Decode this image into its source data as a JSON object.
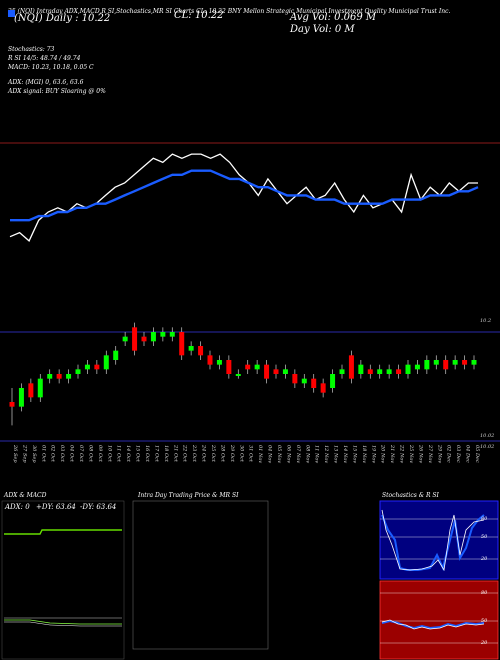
{
  "header": {
    "line1": "25 (NQI) Intraday ADX,MACD,R SI,Stochastics,MR SI Charts CL: 10.22 BNY Mellon Strategic Municipal Investment Quality Municipal Trust Inc.",
    "line2": "(NQI) Daily : 10.22",
    "box_label": "",
    "cl": "CL: 10.22",
    "avg_vol": "Avg Vol: 0.069 M",
    "day_vol": "Day Vol: 0 M",
    "company_short": "BNY"
  },
  "indicators": [
    "Stochastics: 73",
    "R           SI 14/5: 48.74 / 49.74",
    "MACD: 10.23, 10.18, 0.05 C",
    "ADX:                    (MGI) 0, 63.6, 63.6",
    "ADX signal:                       BUY Sloaring @ 0%"
  ],
  "price_labels": {
    "top": "10.2",
    "mid": "10.02",
    "low": "10.02"
  },
  "chart_data": [
    {
      "type": "line",
      "name": "price-line-panel",
      "x": [
        "26 Sep",
        "27 Sep",
        "30 Sep",
        "01 Oct",
        "02 Oct",
        "03 Oct",
        "04 Oct",
        "07 Oct",
        "08 Oct",
        "09 Oct",
        "10 Oct",
        "11 Oct",
        "14 Oct",
        "15 Oct",
        "16 Oct",
        "17 Oct",
        "18 Oct",
        "21 Oct",
        "22 Oct",
        "23 Oct",
        "24 Oct",
        "25 Oct",
        "28 Oct",
        "29 Oct",
        "30 Oct",
        "31 Oct",
        "01 Nov",
        "04 Nov",
        "05 Nov",
        "06 Nov",
        "07 Nov",
        "08 Nov",
        "11 Nov",
        "12 Nov",
        "13 Nov",
        "14 Nov",
        "15 Nov",
        "18 Nov",
        "19 Nov",
        "20 Nov",
        "21 Nov",
        "22 Nov",
        "25 Nov",
        "26 Nov",
        "27 Nov",
        "29 Nov",
        "02 Dec",
        "03 Dec",
        "04 Dec",
        "05 Dec"
      ],
      "series": [
        {
          "color": "#ffffff",
          "values": [
            10.0,
            10.01,
            9.99,
            10.04,
            10.06,
            10.07,
            10.06,
            10.08,
            10.07,
            10.08,
            10.1,
            10.12,
            10.13,
            10.15,
            10.17,
            10.19,
            10.18,
            10.2,
            10.19,
            10.2,
            10.2,
            10.19,
            10.2,
            10.18,
            10.15,
            10.13,
            10.1,
            10.14,
            10.11,
            10.08,
            10.1,
            10.12,
            10.09,
            10.1,
            10.13,
            10.09,
            10.06,
            10.1,
            10.07,
            10.08,
            10.09,
            10.06,
            10.15,
            10.09,
            10.12,
            10.1,
            10.13,
            10.11,
            10.13,
            10.13
          ]
        },
        {
          "color": "#1a5cff",
          "values": [
            10.04,
            10.04,
            10.04,
            10.05,
            10.05,
            10.06,
            10.06,
            10.07,
            10.07,
            10.08,
            10.08,
            10.09,
            10.1,
            10.11,
            10.12,
            10.13,
            10.14,
            10.15,
            10.15,
            10.16,
            10.16,
            10.16,
            10.15,
            10.14,
            10.14,
            10.13,
            10.12,
            10.12,
            10.11,
            10.1,
            10.1,
            10.1,
            10.09,
            10.09,
            10.09,
            10.08,
            10.08,
            10.08,
            10.08,
            10.08,
            10.09,
            10.09,
            10.09,
            10.09,
            10.1,
            10.1,
            10.1,
            10.11,
            10.11,
            10.12
          ]
        }
      ]
    },
    {
      "type": "bar",
      "name": "candlestick-panel",
      "x": [
        "26 Sep",
        "27 Sep",
        "30 Sep",
        "01 Oct",
        "02 Oct",
        "03 Oct",
        "04 Oct",
        "07 Oct",
        "08 Oct",
        "09 Oct",
        "10 Oct",
        "11 Oct",
        "14 Oct",
        "15 Oct",
        "16 Oct",
        "17 Oct",
        "18 Oct",
        "21 Oct",
        "22 Oct",
        "23 Oct",
        "24 Oct",
        "25 Oct",
        "28 Oct",
        "29 Oct",
        "30 Oct",
        "31 Oct",
        "01 Nov",
        "04 Nov",
        "05 Nov",
        "06 Nov",
        "07 Nov",
        "08 Nov",
        "11 Nov",
        "12 Nov",
        "13 Nov",
        "14 Nov",
        "15 Nov",
        "18 Nov",
        "19 Nov",
        "20 Nov",
        "21 Nov",
        "22 Nov",
        "25 Nov",
        "26 Nov",
        "27 Nov",
        "29 Nov",
        "02 Dec",
        "03 Dec",
        "04 Dec",
        "05 Dec"
      ],
      "candles": [
        {
          "o": 10.03,
          "c": 10.02,
          "h": 10.06,
          "l": 9.98,
          "up": false
        },
        {
          "o": 10.02,
          "c": 10.06,
          "h": 10.07,
          "l": 10.01,
          "up": true
        },
        {
          "o": 10.07,
          "c": 10.04,
          "h": 10.08,
          "l": 10.03,
          "up": false
        },
        {
          "o": 10.04,
          "c": 10.08,
          "h": 10.09,
          "l": 10.03,
          "up": true
        },
        {
          "o": 10.08,
          "c": 10.09,
          "h": 10.1,
          "l": 10.07,
          "up": true
        },
        {
          "o": 10.09,
          "c": 10.08,
          "h": 10.1,
          "l": 10.07,
          "up": false
        },
        {
          "o": 10.08,
          "c": 10.09,
          "h": 10.1,
          "l": 10.07,
          "up": true
        },
        {
          "o": 10.09,
          "c": 10.1,
          "h": 10.11,
          "l": 10.08,
          "up": true
        },
        {
          "o": 10.1,
          "c": 10.11,
          "h": 10.12,
          "l": 10.09,
          "up": true
        },
        {
          "o": 10.11,
          "c": 10.1,
          "h": 10.12,
          "l": 10.09,
          "up": false
        },
        {
          "o": 10.1,
          "c": 10.13,
          "h": 10.14,
          "l": 10.09,
          "up": true
        },
        {
          "o": 10.12,
          "c": 10.14,
          "h": 10.15,
          "l": 10.11,
          "up": true
        },
        {
          "o": 10.16,
          "c": 10.17,
          "h": 10.18,
          "l": 10.15,
          "up": true
        },
        {
          "o": 10.19,
          "c": 10.14,
          "h": 10.2,
          "l": 10.13,
          "up": false
        },
        {
          "o": 10.17,
          "c": 10.16,
          "h": 10.18,
          "l": 10.15,
          "up": false
        },
        {
          "o": 10.16,
          "c": 10.18,
          "h": 10.19,
          "l": 10.15,
          "up": true
        },
        {
          "o": 10.17,
          "c": 10.18,
          "h": 10.19,
          "l": 10.16,
          "up": true
        },
        {
          "o": 10.17,
          "c": 10.18,
          "h": 10.19,
          "l": 10.16,
          "up": true
        },
        {
          "o": 10.18,
          "c": 10.13,
          "h": 10.19,
          "l": 10.12,
          "up": false
        },
        {
          "o": 10.14,
          "c": 10.15,
          "h": 10.16,
          "l": 10.13,
          "up": true
        },
        {
          "o": 10.15,
          "c": 10.13,
          "h": 10.16,
          "l": 10.12,
          "up": false
        },
        {
          "o": 10.13,
          "c": 10.11,
          "h": 10.14,
          "l": 10.1,
          "up": false
        },
        {
          "o": 10.11,
          "c": 10.12,
          "h": 10.13,
          "l": 10.1,
          "up": true
        },
        {
          "o": 10.12,
          "c": 10.09,
          "h": 10.13,
          "l": 10.08,
          "up": false
        },
        {
          "o": 10.09,
          "c": 10.09,
          "h": 10.1,
          "l": 10.08,
          "up": true
        },
        {
          "o": 10.11,
          "c": 10.1,
          "h": 10.12,
          "l": 10.09,
          "up": false
        },
        {
          "o": 10.1,
          "c": 10.11,
          "h": 10.12,
          "l": 10.09,
          "up": true
        },
        {
          "o": 10.11,
          "c": 10.08,
          "h": 10.12,
          "l": 10.07,
          "up": false
        },
        {
          "o": 10.1,
          "c": 10.09,
          "h": 10.11,
          "l": 10.08,
          "up": false
        },
        {
          "o": 10.09,
          "c": 10.1,
          "h": 10.11,
          "l": 10.08,
          "up": true
        },
        {
          "o": 10.09,
          "c": 10.07,
          "h": 10.1,
          "l": 10.06,
          "up": false
        },
        {
          "o": 10.07,
          "c": 10.08,
          "h": 10.09,
          "l": 10.06,
          "up": true
        },
        {
          "o": 10.08,
          "c": 10.06,
          "h": 10.09,
          "l": 10.05,
          "up": false
        },
        {
          "o": 10.07,
          "c": 10.05,
          "h": 10.08,
          "l": 10.04,
          "up": false
        },
        {
          "o": 10.06,
          "c": 10.09,
          "h": 10.1,
          "l": 10.05,
          "up": true
        },
        {
          "o": 10.09,
          "c": 10.1,
          "h": 10.11,
          "l": 10.08,
          "up": true
        },
        {
          "o": 10.13,
          "c": 10.08,
          "h": 10.14,
          "l": 10.07,
          "up": false
        },
        {
          "o": 10.09,
          "c": 10.11,
          "h": 10.12,
          "l": 10.08,
          "up": true
        },
        {
          "o": 10.1,
          "c": 10.09,
          "h": 10.11,
          "l": 10.08,
          "up": false
        },
        {
          "o": 10.09,
          "c": 10.1,
          "h": 10.11,
          "l": 10.08,
          "up": true
        },
        {
          "o": 10.09,
          "c": 10.1,
          "h": 10.11,
          "l": 10.08,
          "up": true
        },
        {
          "o": 10.1,
          "c": 10.09,
          "h": 10.11,
          "l": 10.08,
          "up": false
        },
        {
          "o": 10.09,
          "c": 10.11,
          "h": 10.12,
          "l": 10.08,
          "up": true
        },
        {
          "o": 10.1,
          "c": 10.11,
          "h": 10.12,
          "l": 10.09,
          "up": true
        },
        {
          "o": 10.1,
          "c": 10.12,
          "h": 10.13,
          "l": 10.09,
          "up": true
        },
        {
          "o": 10.11,
          "c": 10.12,
          "h": 10.13,
          "l": 10.1,
          "up": true
        },
        {
          "o": 10.12,
          "c": 10.1,
          "h": 10.13,
          "l": 10.09,
          "up": false
        },
        {
          "o": 10.11,
          "c": 10.12,
          "h": 10.13,
          "l": 10.1,
          "up": true
        },
        {
          "o": 10.12,
          "c": 10.11,
          "h": 10.13,
          "l": 10.1,
          "up": false
        },
        {
          "o": 10.11,
          "c": 10.12,
          "h": 10.13,
          "l": 10.1,
          "up": true
        }
      ]
    }
  ],
  "panels": {
    "adx": {
      "title": "ADX  & MACD",
      "label1": "ADX: 0",
      "label2": "+DY: 63.64",
      "label3": "-DY: 63.64"
    },
    "intraday": {
      "title": "Intra  Day Trading Price  & MR                   SI"
    },
    "stoch": {
      "title": "Stochastics & R                   SI",
      "ticks": [
        "80",
        "50",
        "20"
      ],
      "rsi_ticks": [
        "80",
        "50",
        "20"
      ]
    }
  },
  "colors": {
    "up": "#00ff00",
    "down": "#ff0000",
    "price_line": "#ffffff",
    "ma_line": "#1a5cff",
    "rsi_bg": "#9b0000",
    "stoch_border": "#0000ff"
  }
}
